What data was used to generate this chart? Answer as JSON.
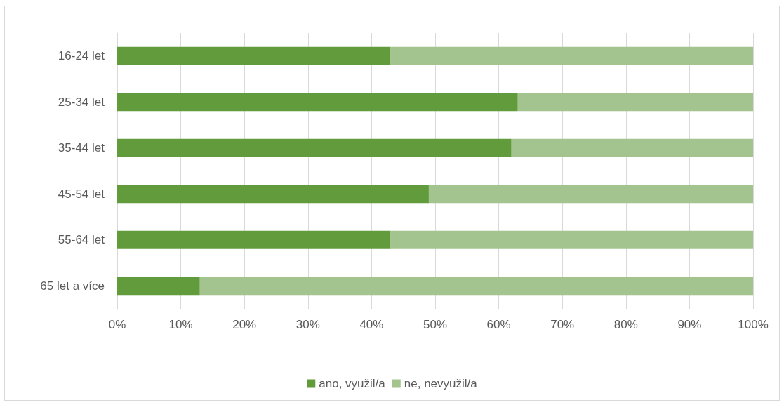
{
  "chart_data": {
    "type": "bar",
    "orientation": "horizontal",
    "stacked": true,
    "categories": [
      "16-24 let",
      "25-34 let",
      "35-44 let",
      "45-54 let",
      "55-64 let",
      "65 let a více"
    ],
    "series": [
      {
        "name": "ano, využil/a",
        "color": "#629b3c",
        "values": [
          43,
          63,
          62,
          49,
          43,
          13
        ]
      },
      {
        "name": "ne, nevyužil/a",
        "color": "#a3c48e",
        "values": [
          57,
          37,
          38,
          51,
          57,
          87
        ]
      }
    ],
    "xlim": [
      0,
      100
    ],
    "xticks": [
      {
        "value": 0,
        "label": "0%"
      },
      {
        "value": 10,
        "label": "10%"
      },
      {
        "value": 20,
        "label": "20%"
      },
      {
        "value": 30,
        "label": "30%"
      },
      {
        "value": 40,
        "label": "40%"
      },
      {
        "value": 50,
        "label": "50%"
      },
      {
        "value": 60,
        "label": "60%"
      },
      {
        "value": 70,
        "label": "70%"
      },
      {
        "value": 80,
        "label": "80%"
      },
      {
        "value": 90,
        "label": "90%"
      },
      {
        "value": 100,
        "label": "100%"
      }
    ],
    "grid": "x",
    "legend": "bottom"
  }
}
